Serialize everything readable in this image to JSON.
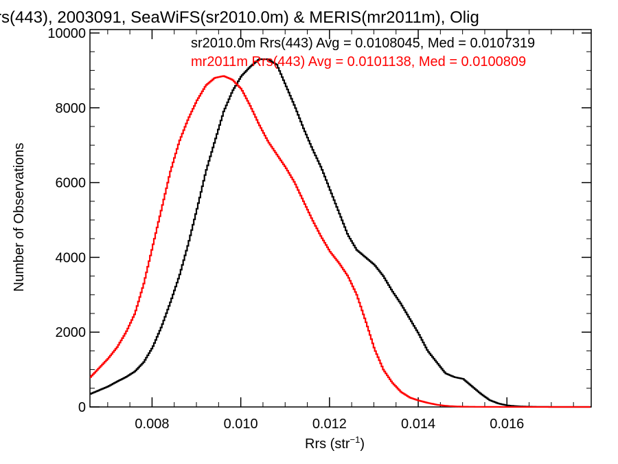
{
  "chart_data": {
    "type": "line",
    "title": "rs(443), 2003091, SeaWiFS(sr2010.0m) & MERIS(mr2011m), Olig",
    "xlabel": "Rrs (str",
    "xlabel_sup": "−1",
    "xlabel_close": ")",
    "ylabel": "Number of Observations",
    "xlim": [
      0.0066,
      0.0179
    ],
    "ylim": [
      0,
      10000
    ],
    "xticks": [
      0.008,
      0.01,
      0.012,
      0.014,
      0.016
    ],
    "xtick_labels": [
      "0.008",
      "0.010",
      "0.012",
      "0.014",
      "0.016"
    ],
    "yticks": [
      0,
      2000,
      4000,
      6000,
      8000,
      10000
    ],
    "ytick_labels": [
      "0",
      "2000",
      "4000",
      "6000",
      "8000",
      "10000"
    ],
    "grid": false,
    "series": [
      {
        "name": "sr2010.0m",
        "color": "#000000",
        "annotation": "sr2010.0m Rrs(443) Avg = 0.0108045, Med = 0.0107319",
        "x": [
          0.0066,
          0.0068,
          0.007,
          0.0072,
          0.0074,
          0.0076,
          0.0078,
          0.008,
          0.0082,
          0.0084,
          0.0086,
          0.0088,
          0.009,
          0.0092,
          0.0094,
          0.0096,
          0.0098,
          0.01,
          0.0102,
          0.0104,
          0.0106,
          0.0108,
          0.011,
          0.0112,
          0.0114,
          0.0116,
          0.0118,
          0.012,
          0.0122,
          0.0124,
          0.0126,
          0.0128,
          0.013,
          0.0132,
          0.0134,
          0.0136,
          0.0138,
          0.014,
          0.0142,
          0.0144,
          0.0146,
          0.0148,
          0.015,
          0.0152,
          0.0154,
          0.0156,
          0.0158,
          0.016,
          0.0162,
          0.0164,
          0.0166,
          0.017,
          0.0179
        ],
        "values": [
          350,
          450,
          550,
          680,
          800,
          950,
          1200,
          1600,
          2150,
          2800,
          3500,
          4350,
          5300,
          6300,
          7100,
          7900,
          8450,
          8850,
          9100,
          9300,
          9300,
          9150,
          8600,
          8050,
          7450,
          6900,
          6400,
          5800,
          5200,
          4600,
          4200,
          4000,
          3800,
          3500,
          3100,
          2750,
          2350,
          1950,
          1500,
          1200,
          900,
          800,
          750,
          550,
          350,
          180,
          90,
          40,
          20,
          10,
          5,
          0,
          0
        ]
      },
      {
        "name": "mr2011m",
        "color": "#ff0000",
        "annotation": "mr2011m Rrs(443) Avg = 0.0101138, Med = 0.0100809",
        "x": [
          0.0066,
          0.0068,
          0.007,
          0.0072,
          0.0074,
          0.0076,
          0.0078,
          0.008,
          0.0082,
          0.0084,
          0.0086,
          0.0088,
          0.009,
          0.0092,
          0.0094,
          0.0096,
          0.0098,
          0.01,
          0.0102,
          0.0104,
          0.0106,
          0.0108,
          0.011,
          0.0112,
          0.0114,
          0.0116,
          0.0118,
          0.012,
          0.0122,
          0.0124,
          0.0126,
          0.0128,
          0.013,
          0.0132,
          0.0134,
          0.0136,
          0.0138,
          0.014,
          0.0142,
          0.0144,
          0.0146,
          0.0148,
          0.015,
          0.0152,
          0.0154,
          0.0156,
          0.016,
          0.017,
          0.0179
        ],
        "values": [
          800,
          1050,
          1300,
          1600,
          2000,
          2500,
          3300,
          4300,
          5300,
          6300,
          7100,
          7700,
          8200,
          8600,
          8800,
          8850,
          8750,
          8500,
          8050,
          7550,
          7100,
          6750,
          6400,
          6000,
          5500,
          5000,
          4550,
          4150,
          3850,
          3500,
          3000,
          2300,
          1550,
          1000,
          650,
          400,
          250,
          170,
          110,
          60,
          30,
          15,
          8,
          5,
          3,
          2,
          0,
          0,
          0
        ]
      }
    ]
  }
}
